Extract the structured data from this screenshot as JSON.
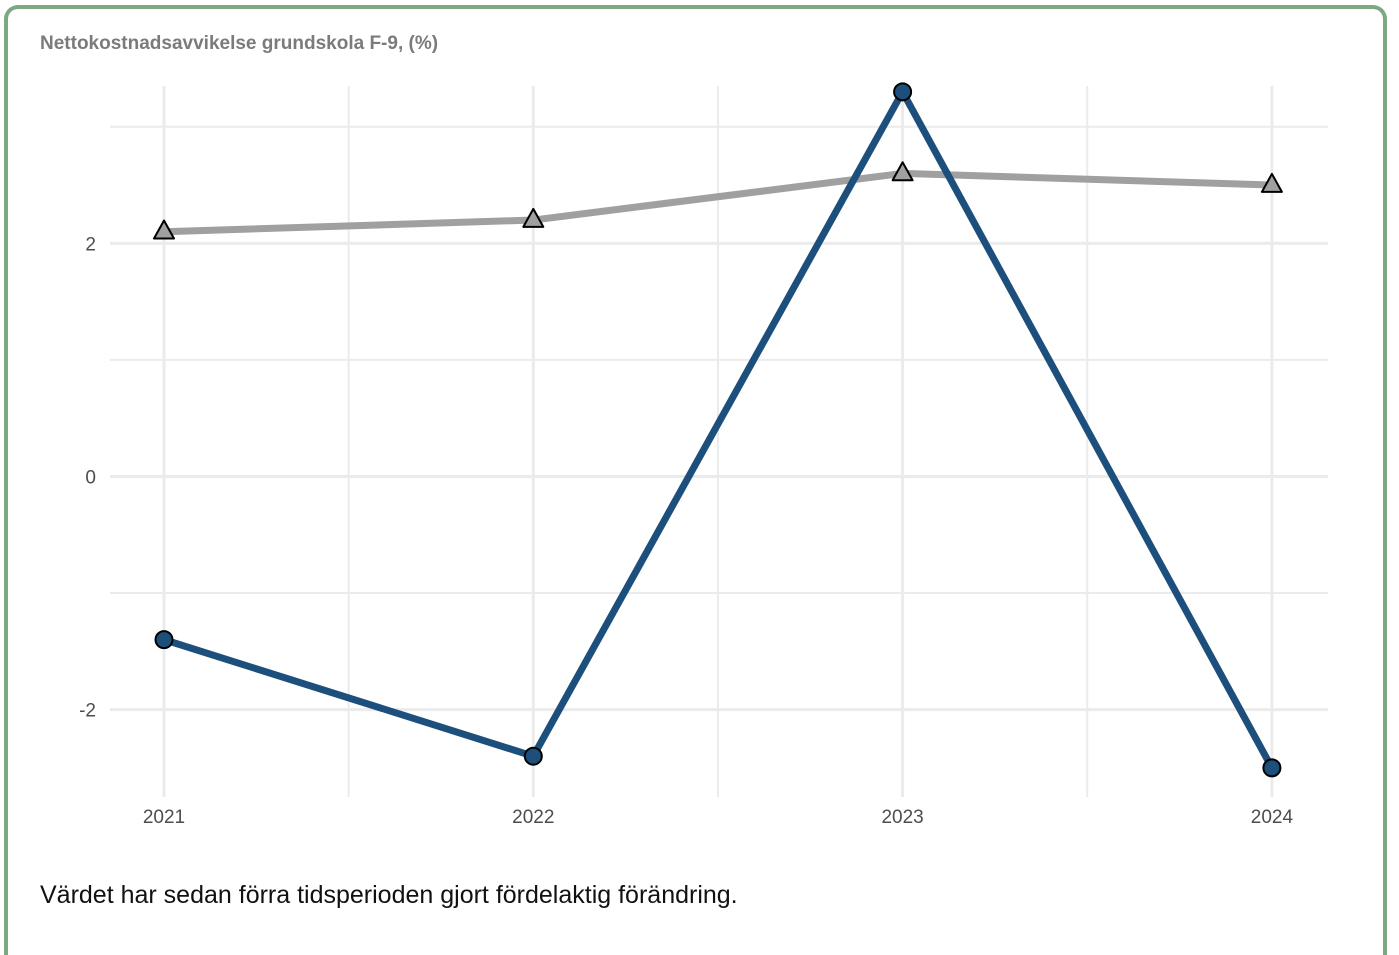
{
  "card": {
    "border_color": "#7aa982"
  },
  "chart_data": {
    "type": "line",
    "title": "Nettokostnadsavvikelse grundskola F-9, (%)",
    "xlabel": "",
    "ylabel": "",
    "x": [
      "2021",
      "2022",
      "2023",
      "2024"
    ],
    "ylim": [
      -2.75,
      3.35
    ],
    "yticks": [
      -2,
      0,
      2
    ],
    "grid": true,
    "series": [
      {
        "color": "#1d4f7c",
        "marker": "circle",
        "values": [
          -1.4,
          -2.4,
          3.3,
          -2.5
        ]
      },
      {
        "color": "#a0a0a0",
        "marker": "triangle",
        "values": [
          2.1,
          2.2,
          2.6,
          2.5
        ]
      }
    ]
  },
  "footer": {
    "note": "Värdet har sedan förra tidsperioden gjort fördelaktig förändring."
  }
}
